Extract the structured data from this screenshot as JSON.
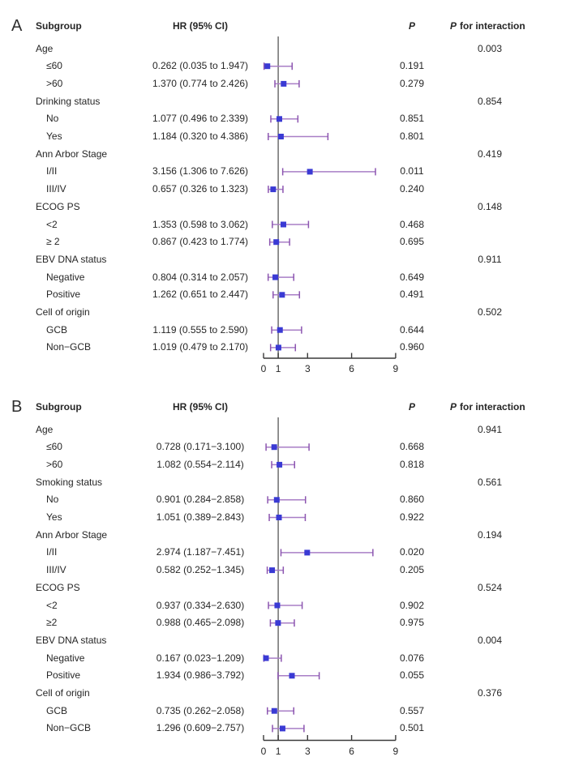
{
  "colors": {
    "ci_line": "#A87EC6",
    "ci_cap": "#8C55B0",
    "marker": "#3A3AD4",
    "ref_line": "#6E6E6E",
    "axis_line": "#3A3A3A",
    "text": "#262626"
  },
  "chart_data": [
    {
      "type": "scatter",
      "subtype": "forest-plot",
      "panel": "A",
      "columns": {
        "subgroup": "Subgroup",
        "hr": "HR (95% CI)",
        "p": "P",
        "p_interaction_prefix": "P",
        "p_interaction_rest": "for interaction"
      },
      "xticks": [
        0,
        1,
        3,
        6,
        9
      ],
      "xlim": [
        0,
        9
      ],
      "ref_line": 1,
      "legend": "none",
      "grid": false,
      "rows": [
        {
          "label": "Age",
          "indent": 0,
          "p_interaction": "0.003"
        },
        {
          "label": "≤60",
          "indent": 1,
          "hr_text": "0.262 (0.035 to 1.947)",
          "hr": 0.262,
          "low": 0.035,
          "high": 1.947,
          "p": "0.191"
        },
        {
          "label": ">60",
          "indent": 1,
          "hr_text": "1.370 (0.774 to 2.426)",
          "hr": 1.37,
          "low": 0.774,
          "high": 2.426,
          "p": "0.279"
        },
        {
          "label": "Drinking status",
          "indent": 0,
          "p_interaction": "0.854"
        },
        {
          "label": "No",
          "indent": 1,
          "hr_text": "1.077 (0.496 to 2.339)",
          "hr": 1.077,
          "low": 0.496,
          "high": 2.339,
          "p": "0.851"
        },
        {
          "label": "Yes",
          "indent": 1,
          "hr_text": "1.184 (0.320 to 4.386)",
          "hr": 1.184,
          "low": 0.32,
          "high": 4.386,
          "p": "0.801"
        },
        {
          "label": "Ann Arbor Stage",
          "indent": 0,
          "p_interaction": "0.419"
        },
        {
          "label": "I/II",
          "indent": 1,
          "hr_text": "3.156 (1.306 to 7.626)",
          "hr": 3.156,
          "low": 1.306,
          "high": 7.626,
          "p": "0.011"
        },
        {
          "label": "III/IV",
          "indent": 1,
          "hr_text": "0.657 (0.326 to 1.323)",
          "hr": 0.657,
          "low": 0.326,
          "high": 1.323,
          "p": "0.240"
        },
        {
          "label": "ECOG PS",
          "indent": 0,
          "p_interaction": "0.148"
        },
        {
          "label": "<2",
          "indent": 1,
          "hr_text": "1.353 (0.598 to 3.062)",
          "hr": 1.353,
          "low": 0.598,
          "high": 3.062,
          "p": "0.468"
        },
        {
          "label": "≥ 2",
          "indent": 1,
          "hr_text": "0.867 (0.423 to 1.774)",
          "hr": 0.867,
          "low": 0.423,
          "high": 1.774,
          "p": "0.695"
        },
        {
          "label": "EBV DNA status",
          "indent": 0,
          "p_interaction": "0.911"
        },
        {
          "label": "Negative",
          "indent": 1,
          "hr_text": "0.804 (0.314 to 2.057)",
          "hr": 0.804,
          "low": 0.314,
          "high": 2.057,
          "p": "0.649"
        },
        {
          "label": "Positive",
          "indent": 1,
          "hr_text": "1.262 (0.651 to 2.447)",
          "hr": 1.262,
          "low": 0.651,
          "high": 2.447,
          "p": "0.491"
        },
        {
          "label": "Cell of origin",
          "indent": 0,
          "p_interaction": "0.502"
        },
        {
          "label": "GCB",
          "indent": 1,
          "hr_text": "1.119 (0.555 to 2.590)",
          "hr": 1.119,
          "low": 0.555,
          "high": 2.59,
          "p": "0.644"
        },
        {
          "label": "Non−GCB",
          "indent": 1,
          "hr_text": "1.019 (0.479 to 2.170)",
          "hr": 1.019,
          "low": 0.479,
          "high": 2.17,
          "p": "0.960"
        }
      ]
    },
    {
      "type": "scatter",
      "subtype": "forest-plot",
      "panel": "B",
      "columns": {
        "subgroup": "Subgroup",
        "hr": "HR (95% CI)",
        "p": "P",
        "p_interaction_prefix": "P",
        "p_interaction_rest": "for interaction"
      },
      "xticks": [
        0,
        1,
        3,
        6,
        9
      ],
      "xlim": [
        0,
        9
      ],
      "ref_line": 1,
      "legend": "none",
      "grid": false,
      "rows": [
        {
          "label": "Age",
          "indent": 0,
          "p_interaction": "0.941"
        },
        {
          "label": "≤60",
          "indent": 1,
          "hr_text": "0.728 (0.171−3.100)",
          "hr": 0.728,
          "low": 0.171,
          "high": 3.1,
          "p": "0.668"
        },
        {
          "label": ">60",
          "indent": 1,
          "hr_text": "1.082 (0.554−2.114)",
          "hr": 1.082,
          "low": 0.554,
          "high": 2.114,
          "p": "0.818"
        },
        {
          "label": "Smoking status",
          "indent": 0,
          "p_interaction": "0.561"
        },
        {
          "label": "No",
          "indent": 1,
          "hr_text": "0.901 (0.284−2.858)",
          "hr": 0.901,
          "low": 0.284,
          "high": 2.858,
          "p": "0.860"
        },
        {
          "label": "Yes",
          "indent": 1,
          "hr_text": "1.051 (0.389−2.843)",
          "hr": 1.051,
          "low": 0.389,
          "high": 2.843,
          "p": "0.922"
        },
        {
          "label": "Ann Arbor Stage",
          "indent": 0,
          "p_interaction": "0.194"
        },
        {
          "label": "I/II",
          "indent": 1,
          "hr_text": "2.974 (1.187−7.451)",
          "hr": 2.974,
          "low": 1.187,
          "high": 7.451,
          "p": "0.020"
        },
        {
          "label": "III/IV",
          "indent": 1,
          "hr_text": "0.582 (0.252−1.345)",
          "hr": 0.582,
          "low": 0.252,
          "high": 1.345,
          "p": "0.205"
        },
        {
          "label": "ECOG PS",
          "indent": 0,
          "p_interaction": "0.524"
        },
        {
          "label": "<2",
          "indent": 1,
          "hr_text": "0.937 (0.334−2.630)",
          "hr": 0.937,
          "low": 0.334,
          "high": 2.63,
          "p": "0.902"
        },
        {
          "label": "≥2",
          "indent": 1,
          "hr_text": "0.988 (0.465−2.098)",
          "hr": 0.988,
          "low": 0.465,
          "high": 2.098,
          "p": "0.975"
        },
        {
          "label": "EBV DNA status",
          "indent": 0,
          "p_interaction": "0.004"
        },
        {
          "label": "Negative",
          "indent": 1,
          "hr_text": "0.167 (0.023−1.209)",
          "hr": 0.167,
          "low": 0.023,
          "high": 1.209,
          "p": "0.076"
        },
        {
          "label": "Positive",
          "indent": 1,
          "hr_text": "1.934 (0.986−3.792)",
          "hr": 1.934,
          "low": 0.986,
          "high": 3.792,
          "p": "0.055"
        },
        {
          "label": "Cell of origin",
          "indent": 0,
          "p_interaction": "0.376"
        },
        {
          "label": "GCB",
          "indent": 1,
          "hr_text": "0.735 (0.262−2.058)",
          "hr": 0.735,
          "low": 0.262,
          "high": 2.058,
          "p": "0.557"
        },
        {
          "label": "Non−GCB",
          "indent": 1,
          "hr_text": "1.296 (0.609−2.757)",
          "hr": 1.296,
          "low": 0.609,
          "high": 2.757,
          "p": "0.501"
        }
      ]
    }
  ]
}
